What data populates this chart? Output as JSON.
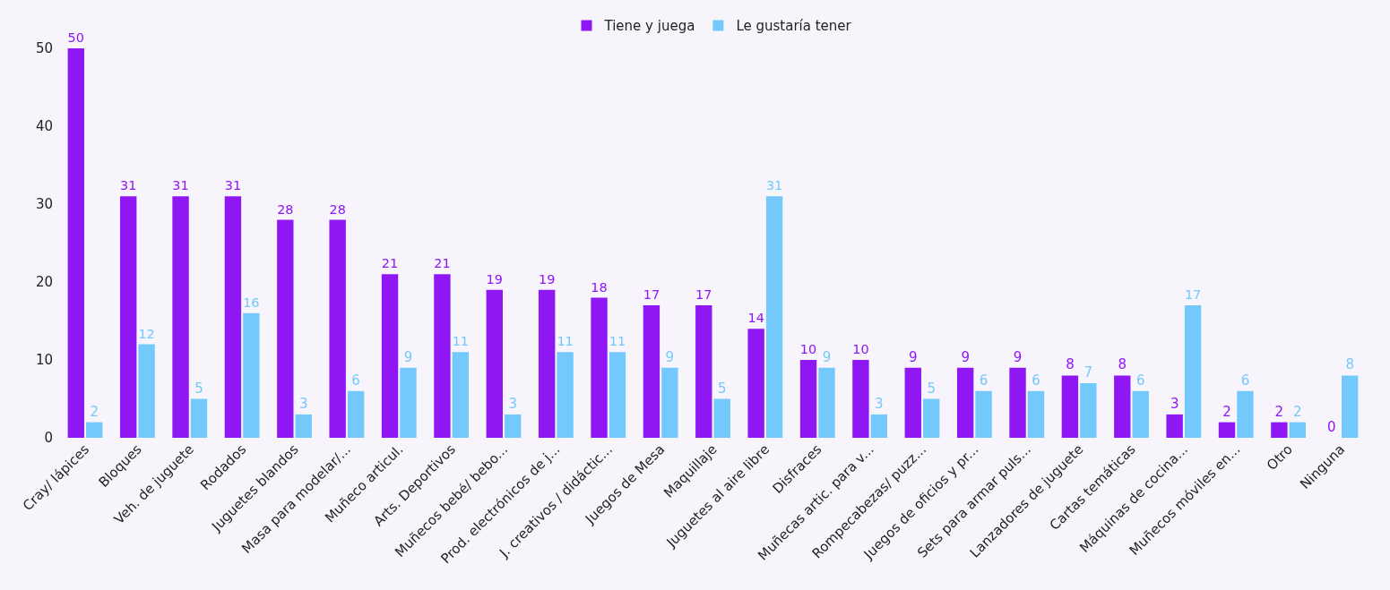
{
  "chart_data": {
    "type": "bar",
    "categories": [
      "Cray/ lápices",
      "Bloques",
      "Veh. de juguete",
      "Rodados",
      "Juguetes blandos",
      "Masa para modelar/...",
      "Muñeco articul.",
      "Arts. Deportivos",
      "Muñecos bebé/ bebo...",
      "Prod. electrónicos de j...",
      "J. creativos / didáctic...",
      "Juegos de Mesa",
      "Maquillaje",
      "Juguetes al aire libre",
      "Disfraces",
      "Muñecas artic. para v...",
      "Rompecabezas/ puzz...",
      "Juegos de oficios y pr...",
      "Sets para armar puls...",
      "Lanzadores de juguete",
      "Cartas temáticas",
      "Máquinas de cocina...",
      "Muñecos móviles en...",
      "Otro",
      "Ninguna"
    ],
    "series": [
      {
        "name": "Tiene y juega",
        "color": "#8e17f4",
        "values": [
          50,
          31,
          31,
          31,
          28,
          28,
          21,
          21,
          19,
          19,
          18,
          17,
          17,
          14,
          10,
          10,
          9,
          9,
          9,
          8,
          8,
          3,
          2,
          2,
          0
        ]
      },
      {
        "name": "Le gustaría tener",
        "color": "#73c9fb",
        "values": [
          2,
          12,
          5,
          16,
          3,
          6,
          9,
          11,
          3,
          11,
          11,
          9,
          5,
          31,
          9,
          3,
          5,
          6,
          6,
          7,
          6,
          17,
          6,
          2,
          8
        ]
      }
    ],
    "ylim": [
      0,
      50
    ],
    "yticks": [
      0,
      10,
      20,
      30,
      40,
      50
    ],
    "grid": false,
    "legend": "top",
    "data_labels": true
  }
}
